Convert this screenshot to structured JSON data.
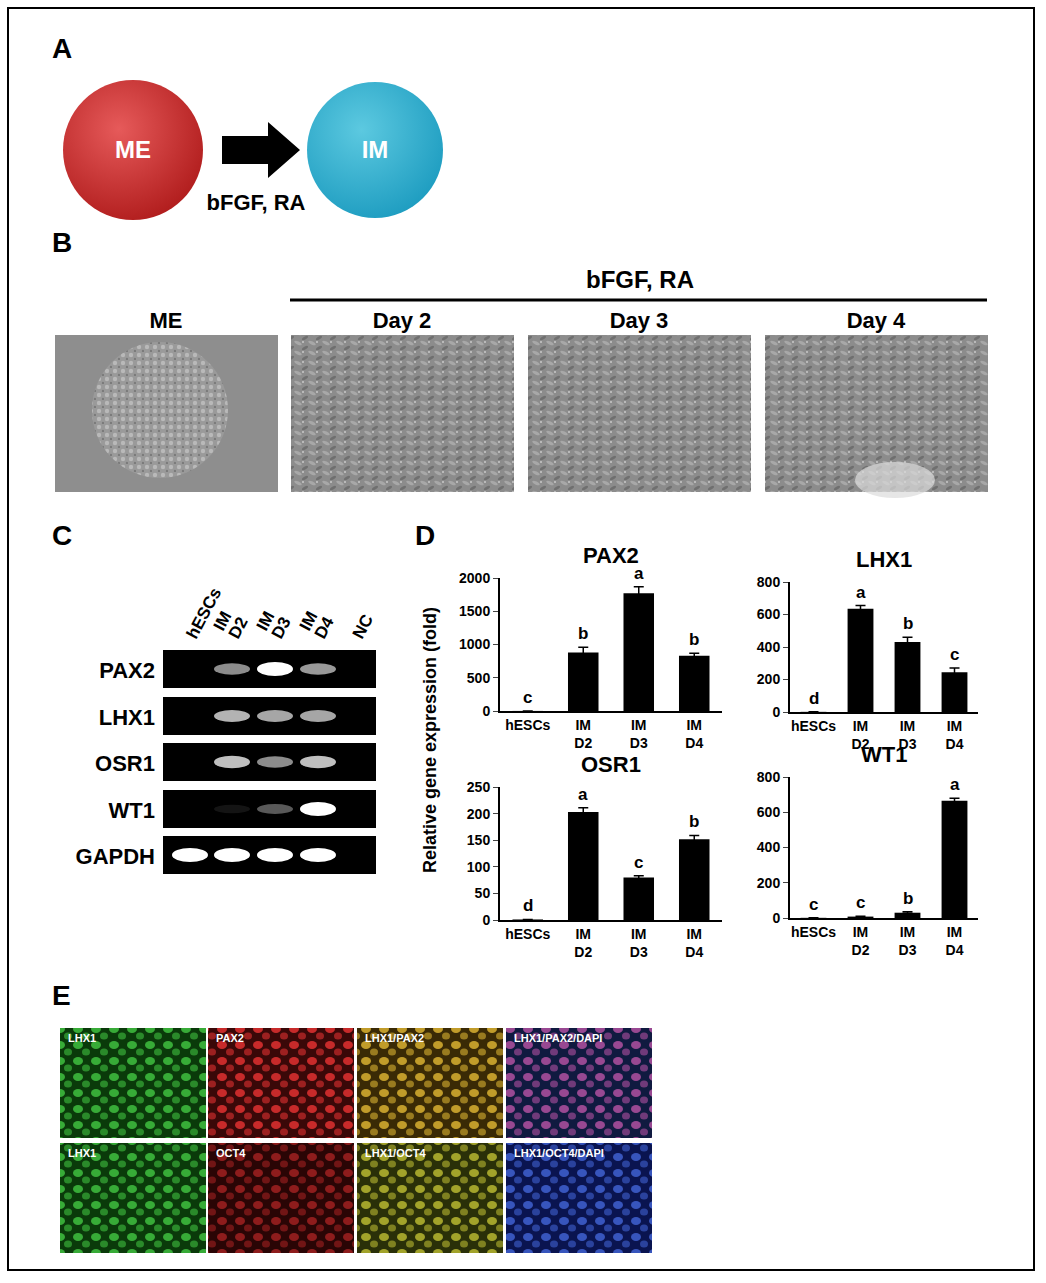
{
  "panels": {
    "A": {
      "label": "A",
      "from": "ME",
      "to": "IM",
      "arrow_label": "bFGF, RA"
    },
    "B": {
      "label": "B",
      "header": "bFGF, RA",
      "images": [
        "ME",
        "Day 2",
        "Day 3",
        "Day 4"
      ]
    },
    "C": {
      "label": "C",
      "lanes": [
        "hESCs",
        "IM D2",
        "IM D3",
        "IM D4",
        "NC"
      ],
      "genes": [
        "PAX2",
        "LHX1",
        "OSR1",
        "WT1",
        "GAPDH"
      ],
      "band_intensity": [
        [
          0,
          0.55,
          1,
          0.6,
          0
        ],
        [
          0,
          0.7,
          0.65,
          0.65,
          0
        ],
        [
          0,
          0.75,
          0.55,
          0.75,
          0
        ],
        [
          0,
          0.08,
          0.35,
          1,
          0
        ],
        [
          1,
          1,
          1,
          1,
          0
        ]
      ]
    },
    "D": {
      "label": "D",
      "y_title": "Relative gene expression (fold)"
    },
    "E": {
      "label": "E",
      "rows": [
        [
          "LHX1",
          "PAX2",
          "LHX1/PAX2",
          "LHX1/PAX2/DAPI"
        ],
        [
          "LHX1",
          "OCT4",
          "LHX1/OCT4",
          "LHX1/OCT4/DAPI"
        ]
      ]
    }
  },
  "chart_data": [
    {
      "type": "bar",
      "title": "PAX2",
      "categories": [
        "hESCs",
        "IM D2",
        "IM D3",
        "IM D4"
      ],
      "values": [
        1,
        880,
        1770,
        830
      ],
      "errors": [
        0,
        80,
        100,
        40
      ],
      "letters": [
        "c",
        "b",
        "a",
        "b"
      ],
      "color": "#000000",
      "ylim": [
        0,
        2000
      ],
      "yticks": [
        0,
        500,
        1000,
        1500,
        2000
      ],
      "grid": false
    },
    {
      "type": "bar",
      "title": "LHX1",
      "categories": [
        "hESCs",
        "IM D2",
        "IM D3",
        "IM D4"
      ],
      "values": [
        1,
        635,
        430,
        245
      ],
      "errors": [
        0,
        20,
        30,
        25
      ],
      "letters": [
        "d",
        "a",
        "b",
        "c"
      ],
      "color": "#000000",
      "ylim": [
        0,
        800
      ],
      "yticks": [
        0,
        200,
        400,
        600,
        800
      ],
      "grid": false
    },
    {
      "type": "bar",
      "title": "OSR1",
      "categories": [
        "hESCs",
        "IM D2",
        "IM D3",
        "IM D4"
      ],
      "values": [
        1,
        203,
        80,
        152
      ],
      "errors": [
        0,
        8,
        3,
        7
      ],
      "letters": [
        "d",
        "a",
        "c",
        "b"
      ],
      "color": "#000000",
      "ylim": [
        0,
        250
      ],
      "yticks": [
        0,
        50,
        100,
        150,
        200,
        250
      ],
      "grid": false
    },
    {
      "type": "bar",
      "title": "WT1",
      "categories": [
        "hESCs",
        "IM D2",
        "IM D3",
        "IM D4"
      ],
      "values": [
        1,
        8,
        30,
        665
      ],
      "errors": [
        0,
        2,
        5,
        15
      ],
      "letters": [
        "c",
        "c",
        "b",
        "a"
      ],
      "color": "#000000",
      "ylim": [
        0,
        800
      ],
      "yticks": [
        0,
        200,
        400,
        600,
        800
      ],
      "grid": false
    }
  ]
}
